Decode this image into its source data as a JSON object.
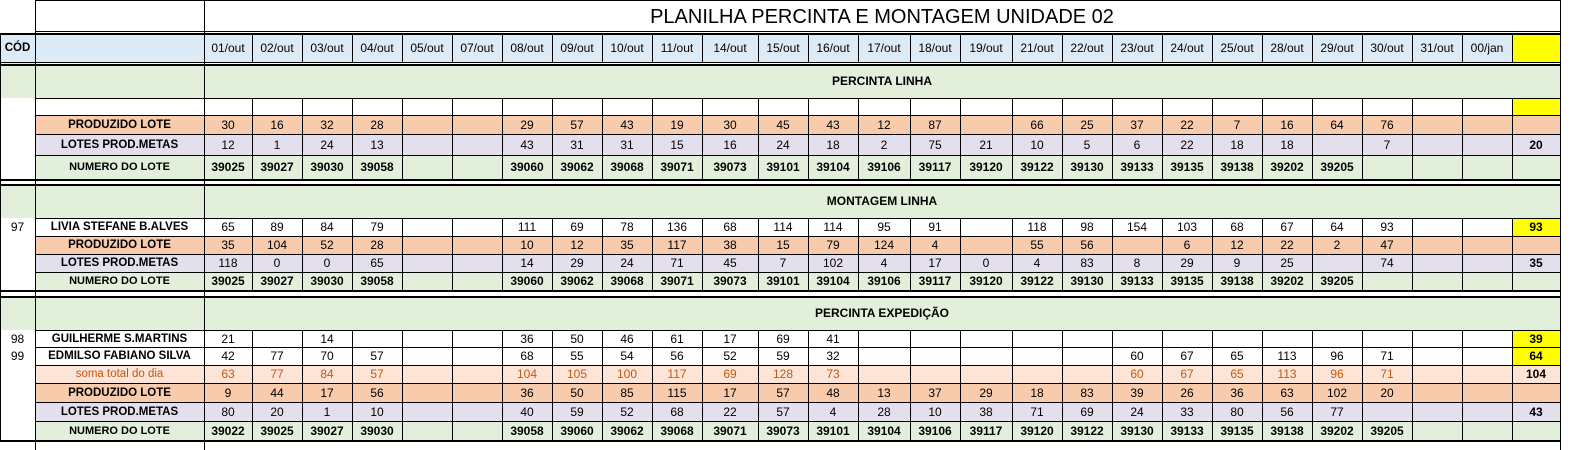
{
  "sheet": {
    "title": "PLANILHA PERCINTA E MONTAGEM UNIDADE 02",
    "code_header": "CÓD",
    "dates": [
      "01/out",
      "02/out",
      "03/out",
      "04/out",
      "05/out",
      "07/out",
      "08/out",
      "09/out",
      "10/out",
      "11/out",
      "14/out",
      "15/out",
      "16/out",
      "17/out",
      "18/out",
      "19/out",
      "21/out",
      "22/out",
      "23/out",
      "24/out",
      "25/out",
      "28/out",
      "29/out",
      "30/out",
      "31/out",
      "00/jan",
      ""
    ],
    "colors": {
      "header_blue": "#ddebf7",
      "section_green": "#e2efda",
      "orange": "#f8cbad",
      "lavender": "#e4dfec",
      "peach": "#fce4d6",
      "yellow": "#ffff00",
      "soma_text": "#c65911"
    },
    "sections": [
      {
        "title": "PERCINTA LINHA"
      },
      {
        "title": "MONTAGEM LINHA"
      },
      {
        "title": "PERCINTA EXPEDIÇÃO"
      }
    ],
    "rows": [
      {
        "label": "",
        "code": "",
        "style": "white",
        "vals": [
          "",
          "",
          "",
          "",
          "",
          "",
          "",
          "",
          "",
          "",
          "",
          "",
          "",
          "",
          "",
          "",
          "",
          "",
          "",
          "",
          "",
          "",
          "",
          "",
          "",
          "",
          ""
        ]
      },
      {
        "label": "PRODUZIDO LOTE",
        "code": "",
        "style": "orange",
        "vals": [
          "30",
          "16",
          "32",
          "28",
          "",
          "",
          "29",
          "57",
          "43",
          "19",
          "30",
          "45",
          "43",
          "12",
          "87",
          "",
          "66",
          "25",
          "37",
          "22",
          "7",
          "16",
          "64",
          "76",
          "",
          "",
          ""
        ]
      },
      {
        "label": "LOTES PROD.METAS",
        "code": "",
        "style": "lavender",
        "vals": [
          "12",
          "1",
          "24",
          "13",
          "",
          "",
          "43",
          "31",
          "31",
          "15",
          "16",
          "24",
          "18",
          "2",
          "75",
          "21",
          "10",
          "5",
          "6",
          "22",
          "18",
          "18",
          "",
          "7",
          "",
          "",
          "20"
        ]
      },
      {
        "label": "NUMERO DO LOTE",
        "code": "",
        "style": "green",
        "vals": [
          "39025",
          "39027",
          "39030",
          "39058",
          "",
          "",
          "39060",
          "39062",
          "39068",
          "39071",
          "39073",
          "39101",
          "39104",
          "39106",
          "39117",
          "39120",
          "39122",
          "39130",
          "39133",
          "39135",
          "39138",
          "39202",
          "39205",
          "",
          "",
          "",
          ""
        ]
      },
      {
        "label": "LIVIA STEFANE B.ALVES",
        "code": "97",
        "style": "white",
        "vals": [
          "65",
          "89",
          "84",
          "79",
          "",
          "",
          "111",
          "69",
          "78",
          "136",
          "68",
          "114",
          "114",
          "95",
          "91",
          "",
          "118",
          "98",
          "154",
          "103",
          "68",
          "67",
          "64",
          "93",
          "",
          "",
          "93"
        ]
      },
      {
        "label": "PRODUZIDO LOTE",
        "code": "",
        "style": "orange",
        "vals": [
          "35",
          "104",
          "52",
          "28",
          "",
          "",
          "10",
          "12",
          "35",
          "117",
          "38",
          "15",
          "79",
          "124",
          "4",
          "",
          "55",
          "56",
          "",
          "6",
          "12",
          "22",
          "2",
          "47",
          "",
          "",
          ""
        ]
      },
      {
        "label": "LOTES PROD.METAS",
        "code": "",
        "style": "lavender",
        "vals": [
          "118",
          "0",
          "0",
          "65",
          "",
          "",
          "14",
          "29",
          "24",
          "71",
          "45",
          "7",
          "102",
          "4",
          "17",
          "0",
          "4",
          "83",
          "8",
          "29",
          "9",
          "25",
          "",
          "74",
          "",
          "",
          "35"
        ]
      },
      {
        "label": "NUMERO DO LOTE",
        "code": "",
        "style": "green",
        "vals": [
          "39025",
          "39027",
          "39030",
          "39058",
          "",
          "",
          "39060",
          "39062",
          "39068",
          "39071",
          "39073",
          "39101",
          "39104",
          "39106",
          "39117",
          "39120",
          "39122",
          "39130",
          "39133",
          "39135",
          "39138",
          "39202",
          "39205",
          "",
          "",
          "",
          ""
        ]
      },
      {
        "label": "GUILHERME S.MARTINS",
        "code": "98",
        "style": "white",
        "vals": [
          "21",
          "",
          "14",
          "",
          "",
          "",
          "36",
          "50",
          "46",
          "61",
          "17",
          "69",
          "41",
          "",
          "",
          "",
          "",
          "",
          "",
          "",
          "",
          "",
          "",
          "",
          "",
          "",
          "39"
        ]
      },
      {
        "label": "EDMILSO FABIANO SILVA",
        "code": "99",
        "style": "white",
        "vals": [
          "42",
          "77",
          "70",
          "57",
          "",
          "",
          "68",
          "55",
          "54",
          "56",
          "52",
          "59",
          "32",
          "",
          "",
          "",
          "",
          "",
          "60",
          "67",
          "65",
          "113",
          "96",
          "71",
          "",
          "",
          "64"
        ]
      },
      {
        "label": "soma total  do dia",
        "code": "",
        "style": "peach",
        "vals": [
          "63",
          "77",
          "84",
          "57",
          "",
          "",
          "104",
          "105",
          "100",
          "117",
          "69",
          "128",
          "73",
          "",
          "",
          "",
          "",
          "",
          "60",
          "67",
          "65",
          "113",
          "96",
          "71",
          "",
          "",
          "104"
        ]
      },
      {
        "label": "PRODUZIDO LOTE",
        "code": "",
        "style": "orange",
        "vals": [
          "9",
          "44",
          "17",
          "56",
          "",
          "",
          "36",
          "50",
          "85",
          "115",
          "17",
          "57",
          "48",
          "13",
          "37",
          "29",
          "18",
          "83",
          "39",
          "26",
          "36",
          "63",
          "102",
          "20",
          "",
          "",
          ""
        ]
      },
      {
        "label": "LOTES PROD.METAS",
        "code": "",
        "style": "lavender",
        "vals": [
          "80",
          "20",
          "1",
          "10",
          "",
          "",
          "40",
          "59",
          "52",
          "68",
          "22",
          "57",
          "4",
          "28",
          "10",
          "38",
          "71",
          "69",
          "24",
          "33",
          "80",
          "56",
          "77",
          "",
          "",
          "",
          "43"
        ]
      },
      {
        "label": "NUMERO DO LOTE",
        "code": "",
        "style": "green",
        "vals": [
          "39022",
          "39025",
          "39027",
          "39030",
          "",
          "",
          "39058",
          "39060",
          "39062",
          "39068",
          "39071",
          "39073",
          "39101",
          "39104",
          "39106",
          "39117",
          "39120",
          "39122",
          "39130",
          "39133",
          "39135",
          "39138",
          "39202",
          "39205",
          "",
          "",
          ""
        ]
      }
    ]
  }
}
